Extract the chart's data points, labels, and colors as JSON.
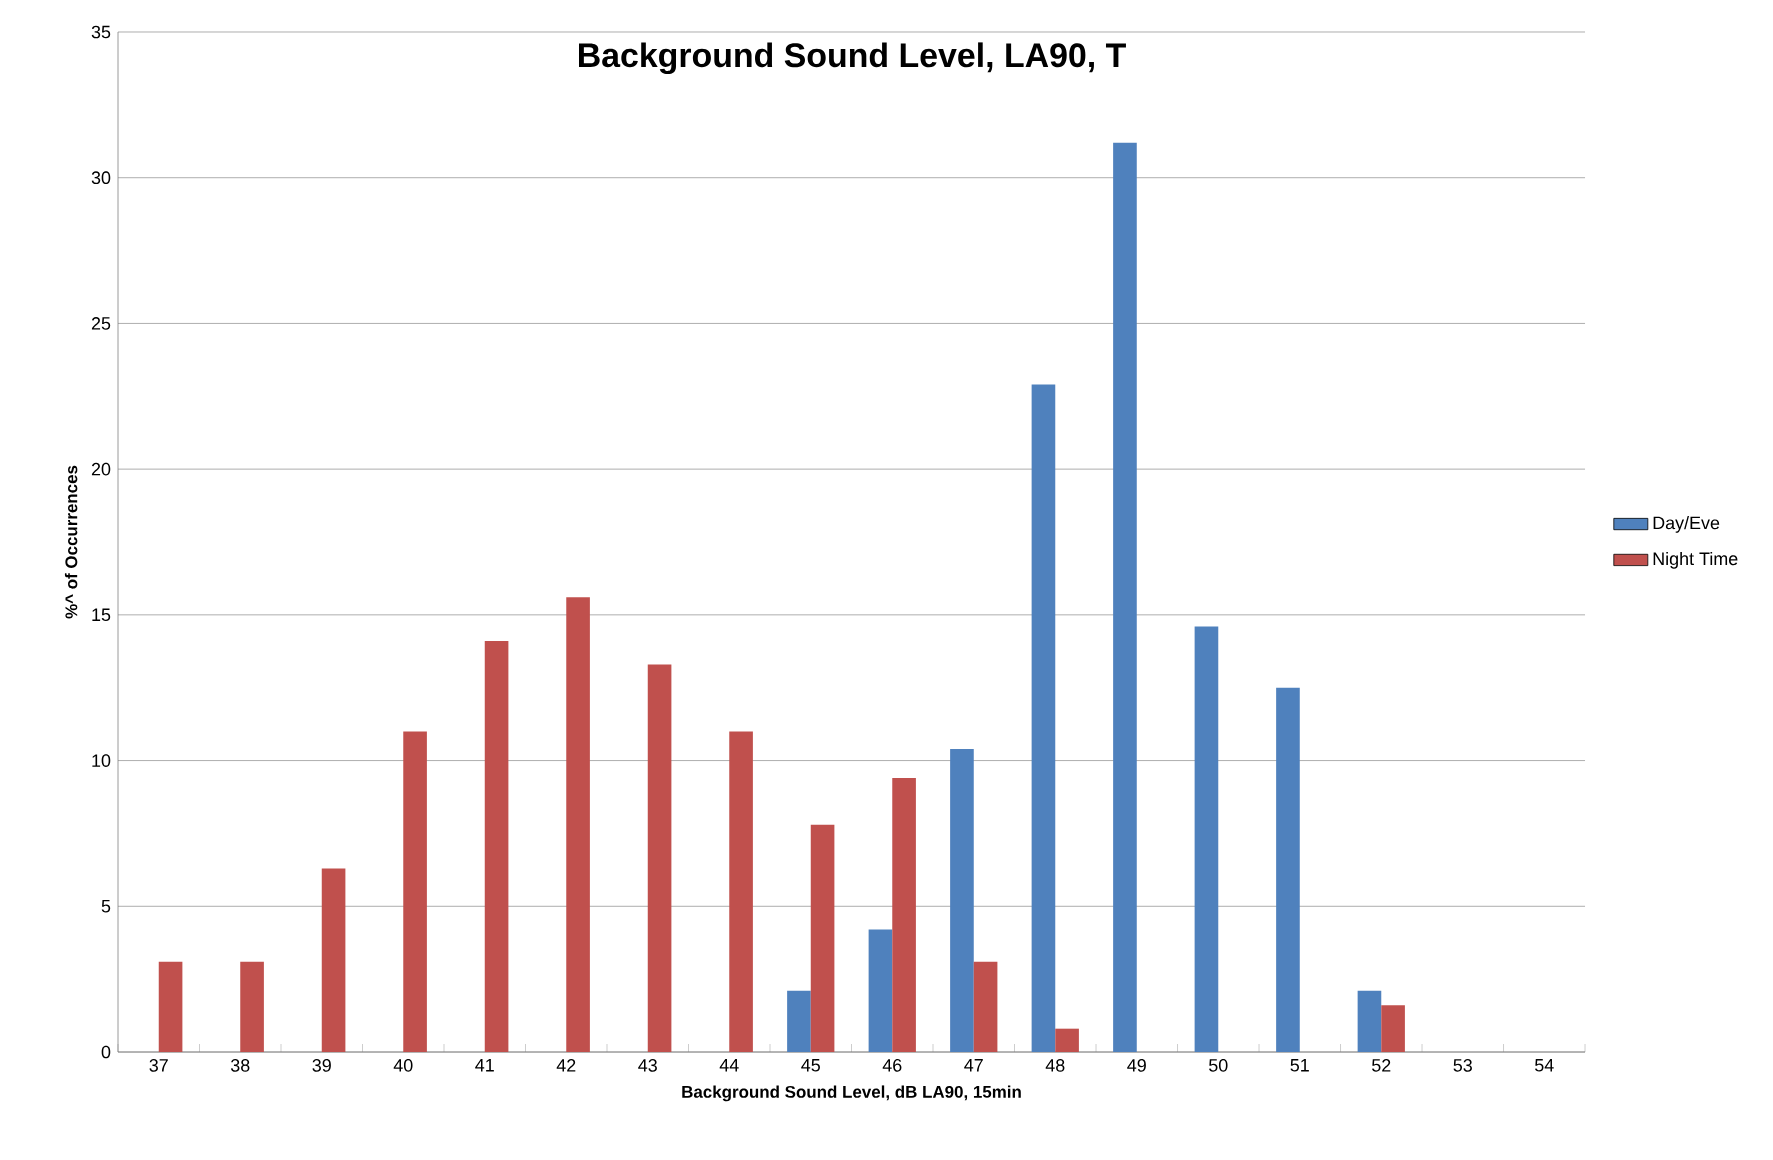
{
  "chart_data": {
    "type": "bar",
    "title": "Background Sound Level, LA90, T",
    "xlabel": "Background  Sound Level, dB LA90, 15min",
    "ylabel": "%^ of Occurrences",
    "categories": [
      "37",
      "38",
      "39",
      "40",
      "41",
      "42",
      "43",
      "44",
      "45",
      "46",
      "47",
      "48",
      "49",
      "50",
      "51",
      "52",
      "53",
      "54"
    ],
    "series": [
      {
        "name": "Day/Eve",
        "color": "#4f81bd",
        "values": [
          null,
          null,
          null,
          null,
          null,
          null,
          null,
          null,
          2.1,
          4.2,
          10.4,
          22.9,
          31.2,
          14.6,
          12.5,
          2.1,
          null,
          null
        ]
      },
      {
        "name": "Night Time",
        "color": "#c0504d",
        "values": [
          3.1,
          3.1,
          6.3,
          11.0,
          14.1,
          15.6,
          13.3,
          11.0,
          7.8,
          9.4,
          3.1,
          0.8,
          null,
          null,
          null,
          1.6,
          null,
          null
        ]
      }
    ],
    "ylim": [
      0,
      35
    ],
    "yticks": [
      0,
      5,
      10,
      15,
      20,
      25,
      30,
      35
    ],
    "grid": "y",
    "legend": "right"
  }
}
